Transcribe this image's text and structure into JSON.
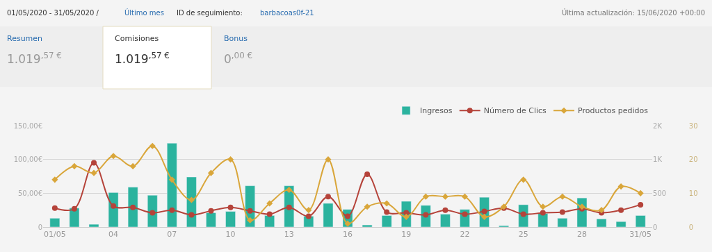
{
  "chart_data": {
    "type": "bar",
    "annotations": [
      "01/05/2020 - 31/05/2020 /",
      "Último mes",
      "ID de seguimiento:",
      "barbacoas0f-21",
      "Última actualización: 15/06/2020 +00:00",
      "Resumen",
      "1.019$^{,57 €}$",
      "Comisiones",
      "1.019$^{,57 €}$",
      "Bonus",
      "0$^{,00 €}$"
    ],
    "categories": [
      "01/05",
      null,
      null,
      "04",
      null,
      null,
      "07",
      null,
      null,
      "10",
      null,
      null,
      "13",
      null,
      null,
      "16",
      null,
      null,
      "19",
      null,
      null,
      "22",
      null,
      null,
      "25",
      null,
      null,
      "28",
      null,
      null,
      "31/05"
    ],
    "series": [
      {
        "name": "Ingresos",
        "color": "#2bb39e",
        "values": [
          13,
          28,
          4,
          51,
          59,
          47,
          124,
          74,
          21,
          23,
          61,
          17,
          61,
          16,
          35,
          26,
          3,
          17,
          38,
          32,
          19,
          26,
          44,
          2,
          33,
          20,
          13,
          43,
          12,
          8,
          17
        ]
      },
      {
        "name": "Número de Clics",
        "type": "line",
        "axis": "y2",
        "marker": "circle",
        "color": "#b5433a",
        "values": [
          280,
          270,
          950,
          310,
          290,
          210,
          250,
          180,
          240,
          290,
          240,
          190,
          290,
          160,
          450,
          160,
          780,
          220,
          210,
          180,
          250,
          190,
          230,
          280,
          190,
          210,
          220,
          270,
          210,
          250,
          330
        ]
      },
      {
        "name": "Productos pedidos",
        "type": "line",
        "axis": "y3",
        "marker": "diamond",
        "color": "#d9a63a",
        "values": [
          14,
          18,
          16,
          21,
          18,
          24,
          14,
          8,
          16,
          20,
          2,
          7,
          11,
          5,
          20,
          1,
          6,
          7,
          3,
          9,
          9,
          9,
          3,
          6,
          14,
          6,
          9,
          6,
          5,
          12,
          10
        ]
      }
    ],
    "ylim": [
      0,
      150
    ],
    "yticks": [
      0,
      {
        "value": 50,
        "label": "50,00€"
      },
      {
        "value": 100,
        "label": "100,00€"
      },
      {
        "value": 150,
        "label": "150,00€"
      }
    ],
    "y2lim": [
      0,
      1500
    ],
    "y2ticks": [
      0,
      500,
      {
        "value": 1000,
        "label": "1K"
      },
      {
        "value": 1500,
        "label": "2K"
      }
    ],
    "y3lim": [
      0,
      30
    ],
    "y3ticks": [
      0,
      10,
      20,
      30
    ],
    "grid": "y",
    "legend": "top right"
  }
}
